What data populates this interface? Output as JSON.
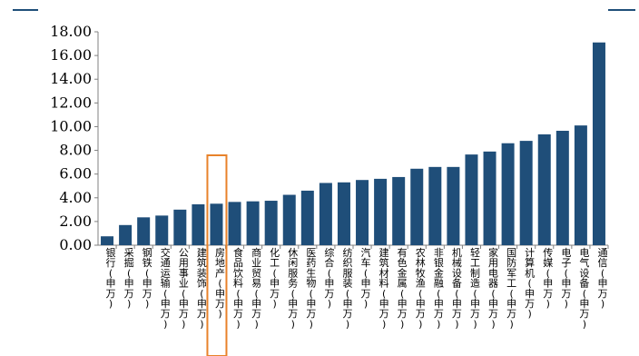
{
  "colors": {
    "bar": "#1f4e79",
    "highlight": "#e8822a",
    "axis": "#808080",
    "header_rule": "#1f4e79"
  },
  "chart_data": {
    "type": "bar",
    "title": "",
    "xlabel": "",
    "ylabel": "",
    "ylim": [
      0,
      18
    ],
    "y_ticks": [
      "0.00",
      "2.00",
      "4.00",
      "6.00",
      "8.00",
      "10.00",
      "12.00",
      "14.00",
      "16.00",
      "18.00"
    ],
    "grid": false,
    "legend": "none",
    "highlighted_category": "房地产(申万)",
    "categories": [
      "银行(申万)",
      "采掘(申万)",
      "钢铁(申万)",
      "交通运输(申万)",
      "公用事业(申万)",
      "建筑装饰(申万)",
      "房地产(申万)",
      "食品饮料(申万)",
      "商业贸易(申万)",
      "化工(申万)",
      "休闲服务(申万)",
      "医药生物(申万)",
      "综合(申万)",
      "纺织服装(申万)",
      "汽车(申万)",
      "建筑材料(申万)",
      "有色金属(申万)",
      "农林牧渔(申万)",
      "非银金融(申万)",
      "机械设备(申万)",
      "轻工制造(申万)",
      "家用电器(申万)",
      "国防军工(申万)",
      "计算机(申万)",
      "传媒(申万)",
      "电子(申万)",
      "电气设备(申万)",
      "通信(申万)"
    ],
    "values": [
      0.75,
      1.7,
      2.35,
      2.5,
      3.0,
      3.45,
      3.5,
      3.65,
      3.7,
      3.75,
      4.25,
      4.6,
      5.25,
      5.3,
      5.5,
      5.6,
      5.75,
      6.45,
      6.6,
      6.6,
      7.65,
      7.9,
      8.6,
      8.8,
      9.35,
      9.65,
      10.1,
      17.1
    ]
  }
}
